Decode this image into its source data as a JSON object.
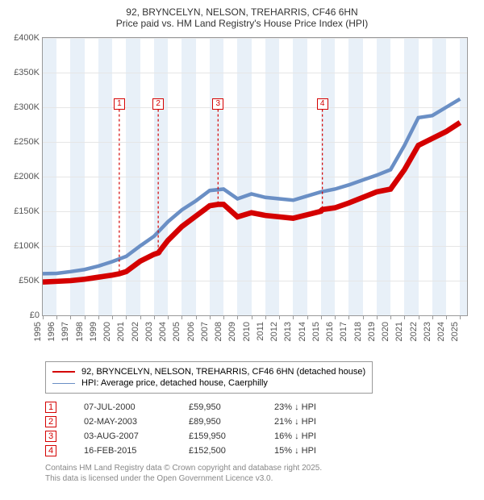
{
  "title_line1": "92, BRYNCELYN, NELSON, TREHARRIS, CF46 6HN",
  "title_line2": "Price paid vs. HM Land Registry's House Price Index (HPI)",
  "chart": {
    "type": "line",
    "background_color": "#ffffff",
    "band_color": "#e8f0f8",
    "grid_color": "#e6e6e6",
    "axis_color": "#999999",
    "label_color": "#555555",
    "label_fontsize": 11,
    "x_years": [
      1995,
      1996,
      1997,
      1998,
      1999,
      2000,
      2001,
      2002,
      2003,
      2004,
      2005,
      2006,
      2007,
      2008,
      2009,
      2010,
      2011,
      2012,
      2013,
      2014,
      2015,
      2016,
      2017,
      2018,
      2019,
      2020,
      2021,
      2022,
      2023,
      2024,
      2025
    ],
    "xlim": [
      1995,
      2025.5
    ],
    "ylim": [
      0,
      400000
    ],
    "ytick_step": 50000,
    "ytick_labels": [
      "£0",
      "£50K",
      "£100K",
      "£150K",
      "£200K",
      "£250K",
      "£300K",
      "£350K",
      "£400K"
    ],
    "series_price_paid": {
      "color": "#d40000",
      "line_width": 2.2,
      "x": [
        1995,
        1996,
        1997,
        1998,
        1999,
        2000,
        2000.5,
        2001,
        2002,
        2003,
        2003.3,
        2004,
        2005,
        2006,
        2007,
        2007.6,
        2008,
        2009,
        2010,
        2011,
        2012,
        2013,
        2014,
        2015,
        2015.1,
        2016,
        2017,
        2018,
        2019,
        2020,
        2021,
        2022,
        2023,
        2024,
        2025
      ],
      "y": [
        48000,
        49000,
        50000,
        52000,
        55000,
        58000,
        59950,
        63000,
        78000,
        88000,
        89950,
        108000,
        128000,
        143000,
        158000,
        159950,
        160000,
        142000,
        148000,
        144000,
        142000,
        140000,
        145000,
        150000,
        152500,
        155000,
        162000,
        170000,
        178000,
        182000,
        210000,
        245000,
        255000,
        265000,
        278000
      ]
    },
    "series_hpi": {
      "color": "#6a8fc5",
      "line_width": 1.5,
      "x": [
        1995,
        1996,
        1997,
        1998,
        1999,
        2000,
        2001,
        2002,
        2003,
        2004,
        2005,
        2006,
        2007,
        2008,
        2009,
        2010,
        2011,
        2012,
        2013,
        2014,
        2015,
        2016,
        2017,
        2018,
        2019,
        2020,
        2021,
        2022,
        2023,
        2024,
        2025
      ],
      "y": [
        60000,
        60500,
        63000,
        66000,
        71000,
        77500,
        85000,
        100000,
        114000,
        135000,
        152000,
        165000,
        180000,
        182000,
        168000,
        175000,
        170000,
        168000,
        166000,
        172000,
        178000,
        182000,
        188000,
        195000,
        202000,
        210000,
        245000,
        285000,
        288000,
        300000,
        312000
      ]
    },
    "sale_markers": [
      {
        "n": "1",
        "x": 2000.5,
        "y": 59950,
        "label_y": 305000
      },
      {
        "n": "2",
        "x": 2003.3,
        "y": 89950,
        "label_y": 305000
      },
      {
        "n": "3",
        "x": 2007.6,
        "y": 159950,
        "label_y": 305000
      },
      {
        "n": "4",
        "x": 2015.1,
        "y": 152500,
        "label_y": 305000
      }
    ]
  },
  "legend": {
    "items": [
      {
        "label": "92, BRYNCELYN, NELSON, TREHARRIS, CF46 6HN (detached house)",
        "kind": "red"
      },
      {
        "label": "HPI: Average price, detached house, Caerphilly",
        "kind": "blue"
      }
    ]
  },
  "sales": [
    {
      "n": "1",
      "date": "07-JUL-2000",
      "price": "£59,950",
      "diff": "23% ↓ HPI"
    },
    {
      "n": "2",
      "date": "02-MAY-2003",
      "price": "£89,950",
      "diff": "21% ↓ HPI"
    },
    {
      "n": "3",
      "date": "03-AUG-2007",
      "price": "£159,950",
      "diff": "16% ↓ HPI"
    },
    {
      "n": "4",
      "date": "16-FEB-2015",
      "price": "£152,500",
      "diff": "15% ↓ HPI"
    }
  ],
  "footer": {
    "line1": "Contains HM Land Registry data © Crown copyright and database right 2025.",
    "line2": "This data is licensed under the Open Government Licence v3.0."
  }
}
